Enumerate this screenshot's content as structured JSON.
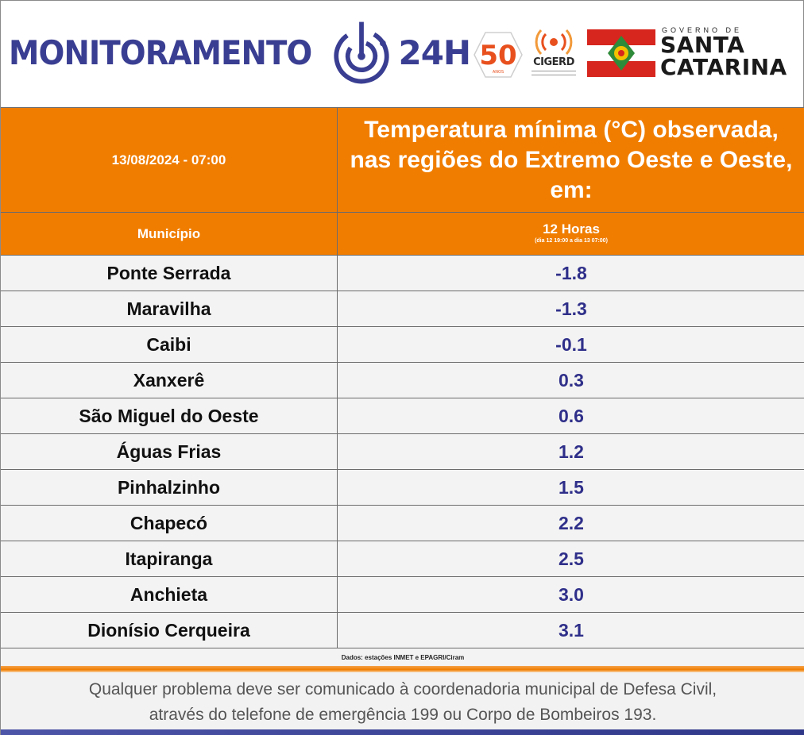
{
  "header": {
    "brand_word": "MONITORAMENTO",
    "brand_suffix": "24H",
    "badge_50_number": "50",
    "badge_50_sub": "ANOS",
    "cigerd_label": "CIGERD",
    "gov_small": "GOVERNO DE",
    "gov_line1": "SANTA",
    "gov_line2": "CATARINA"
  },
  "colors": {
    "orange": "#f07d00",
    "brand_blue": "#3a3e92",
    "value_blue": "#2f2f8a"
  },
  "table": {
    "datetime": "13/08/2024 - 07:00",
    "title": "Temperatura mínima (°C) observada, nas regiões do Extremo Oeste e Oeste, em:",
    "col_municipio": "Município",
    "col_period": "12 Horas",
    "col_period_sub": "(dia 12 19:00 a dia 13 07:00)",
    "rows": [
      {
        "municipio": "Ponte Serrada",
        "valor": "-1.8"
      },
      {
        "municipio": "Maravilha",
        "valor": "-1.3"
      },
      {
        "municipio": "Caibi",
        "valor": "-0.1"
      },
      {
        "municipio": "Xanxerê",
        "valor": "0.3"
      },
      {
        "municipio": "São Miguel do Oeste",
        "valor": "0.6"
      },
      {
        "municipio": "Águas Frias",
        "valor": "1.2"
      },
      {
        "municipio": "Pinhalzinho",
        "valor": "1.5"
      },
      {
        "municipio": "Chapecó",
        "valor": "2.2"
      },
      {
        "municipio": "Itapiranga",
        "valor": "2.5"
      },
      {
        "municipio": "Anchieta",
        "valor": "3.0"
      },
      {
        "municipio": "Dionísio Cerqueira",
        "valor": "3.1"
      }
    ],
    "source": "Dados: estações INMET e EPAGRI/Ciram"
  },
  "footer": {
    "line1": "Qualquer problema deve ser comunicado à coordenadoria municipal de Defesa Civil,",
    "line2": "através do telefone de emergência 199 ou Corpo de Bombeiros 193."
  }
}
